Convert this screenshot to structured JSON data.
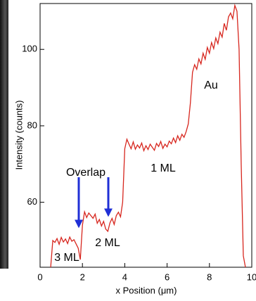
{
  "chart_data": {
    "type": "line",
    "xlabel": "x Position (μm)",
    "ylabel": "Intensity (counts)",
    "x": [
      0.5,
      0.6,
      0.7,
      0.8,
      0.9,
      1.0,
      1.1,
      1.2,
      1.3,
      1.4,
      1.5,
      1.6,
      1.7,
      1.8,
      1.9,
      2.0,
      2.1,
      2.2,
      2.3,
      2.4,
      2.5,
      2.6,
      2.7,
      2.8,
      2.9,
      3.0,
      3.1,
      3.2,
      3.3,
      3.4,
      3.5,
      3.6,
      3.7,
      3.8,
      3.9,
      4.0,
      4.1,
      4.2,
      4.3,
      4.4,
      4.5,
      4.6,
      4.7,
      4.8,
      4.9,
      5.0,
      5.1,
      5.2,
      5.3,
      5.4,
      5.5,
      5.6,
      5.7,
      5.8,
      5.9,
      6.0,
      6.1,
      6.2,
      6.3,
      6.4,
      6.5,
      6.6,
      6.7,
      6.8,
      6.9,
      7.0,
      7.1,
      7.2,
      7.3,
      7.4,
      7.5,
      7.6,
      7.7,
      7.8,
      7.9,
      8.0,
      8.1,
      8.2,
      8.3,
      8.4,
      8.5,
      8.6,
      8.7,
      8.8,
      8.9,
      9.0,
      9.1,
      9.2,
      9.3,
      9.4,
      9.5,
      9.6,
      9.7
    ],
    "series": [
      {
        "color": "#d7261e",
        "values": [
          43,
          50,
          49.5,
          50.5,
          49,
          50.8,
          49.6,
          50.4,
          49.2,
          50.9,
          49.8,
          50.2,
          49.1,
          48,
          45,
          54,
          57.5,
          56,
          57.2,
          56.5,
          55.8,
          56.9,
          54.5,
          55.5,
          53.8,
          55,
          53,
          52.4,
          54.6,
          55.8,
          54.2,
          56.5,
          57.4,
          56.2,
          60,
          74,
          76.5,
          75.2,
          74,
          75.8,
          73.9,
          75,
          74.2,
          75.5,
          73.5,
          74.8,
          73.8,
          75.2,
          74.4,
          73.6,
          75.4,
          74.6,
          75.9,
          74.1,
          75.2,
          74.5,
          76,
          75.3,
          76.8,
          75.6,
          77.4,
          76.2,
          77.8,
          77,
          78.5,
          80.5,
          86,
          94,
          96,
          94.8,
          97.5,
          96.2,
          99,
          97.4,
          100.5,
          99,
          101.8,
          100.2,
          103,
          101.5,
          104.5,
          103.2,
          106.8,
          105,
          108.5,
          109.5,
          108,
          111.5,
          110,
          100,
          70,
          46,
          43
        ]
      }
    ],
    "xlim": [
      0,
      10
    ],
    "xticks": [
      0,
      2,
      4,
      6,
      8,
      10
    ],
    "ylim": [
      43,
      112
    ],
    "yticks": [
      60,
      80,
      100
    ],
    "annotations": [
      "Overlap",
      "Au",
      "1 ML",
      "2 ML",
      "3 ML"
    ]
  }
}
